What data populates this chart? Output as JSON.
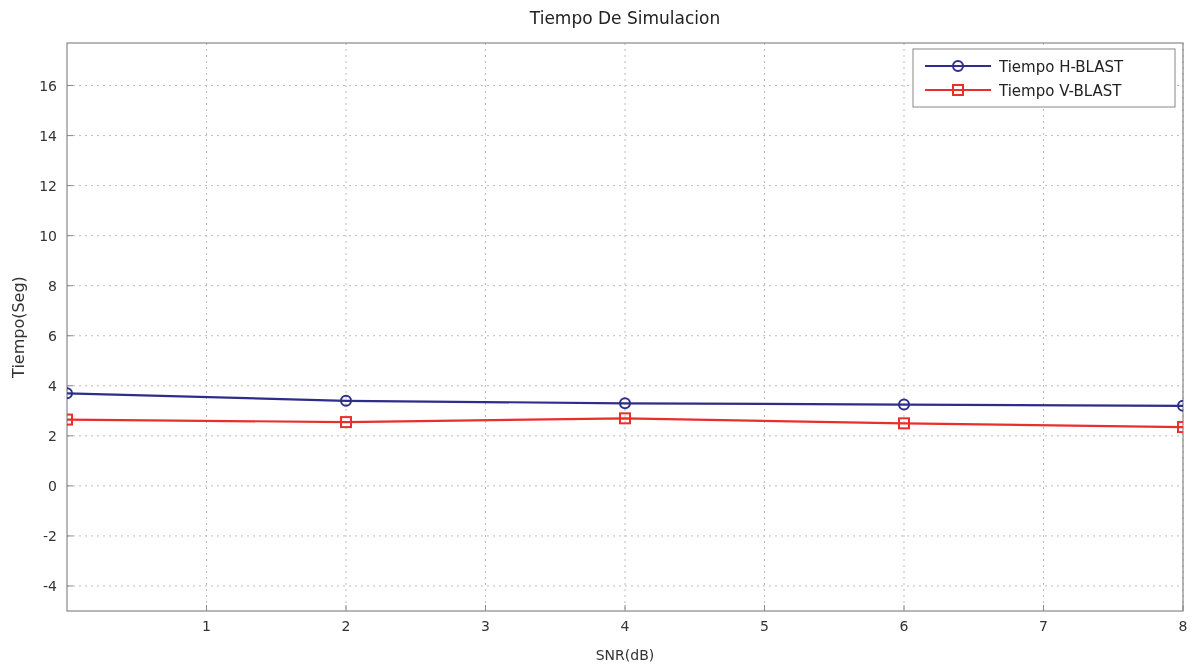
{
  "chart_data": {
    "type": "line",
    "title": "Tiempo De Simulacion",
    "xlabel": "SNR(dB)",
    "ylabel": "Tiempo(Seg)",
    "x": [
      0,
      2,
      4,
      6,
      8
    ],
    "series": [
      {
        "name": "Tiempo H-BLAST",
        "color": "#2e2e8a",
        "values": [
          3.7,
          3.4,
          3.3,
          3.25,
          3.2
        ],
        "marker": "circle"
      },
      {
        "name": "Tiempo V-BLAST",
        "color": "#e8302a",
        "values": [
          2.65,
          2.55,
          2.7,
          2.5,
          2.35
        ],
        "marker": "square"
      }
    ],
    "xlim": [
      0,
      8
    ],
    "xticks": [
      1,
      2,
      3,
      4,
      5,
      6,
      7,
      8
    ],
    "ylim": [
      -5,
      17.7
    ],
    "yticks": [
      -4,
      -2,
      0,
      2,
      4,
      6,
      8,
      10,
      12,
      14,
      16
    ],
    "grid": true,
    "legend": "top right",
    "line_style": "solid"
  }
}
